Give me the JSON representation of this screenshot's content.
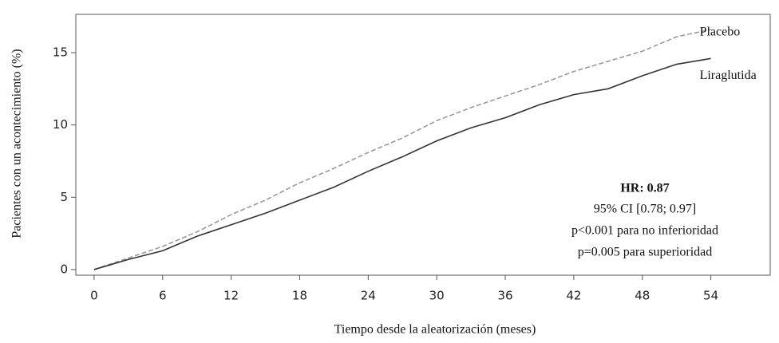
{
  "chart_data": {
    "type": "line",
    "xlabel": "Tiempo desde la aleatorización (meses)",
    "ylabel": "Pacientes con un acontecimiento (%)",
    "x": [
      0,
      3,
      6,
      9,
      12,
      15,
      18,
      21,
      24,
      27,
      30,
      33,
      36,
      39,
      42,
      45,
      48,
      51,
      54
    ],
    "series": [
      {
        "name": "Placebo",
        "color": "#9a9a9a",
        "dashed": true,
        "values": [
          0,
          0.8,
          1.6,
          2.6,
          3.8,
          4.8,
          6.0,
          7.0,
          8.1,
          9.1,
          10.3,
          11.2,
          12.0,
          12.8,
          13.7,
          14.4,
          15.1,
          16.1,
          16.6
        ]
      },
      {
        "name": "Liraglutida",
        "color": "#333333",
        "dashed": false,
        "values": [
          0,
          0.7,
          1.3,
          2.3,
          3.1,
          3.9,
          4.8,
          5.7,
          6.8,
          7.8,
          8.9,
          9.8,
          10.5,
          11.4,
          12.1,
          12.5,
          13.4,
          14.2,
          14.6
        ]
      }
    ],
    "xlim": [
      -1.6,
      59.2
    ],
    "ylim": [
      -0.39,
      17.65
    ],
    "xticks": [
      0,
      6,
      12,
      18,
      24,
      30,
      36,
      42,
      48,
      54
    ],
    "yticks": [
      0,
      5,
      10,
      15
    ],
    "annotations": [
      "HR: 0.87",
      "95% CI [0.78; 0.97]",
      "p<0.001 para no inferioridad",
      "p=0.005 para superioridad"
    ]
  }
}
